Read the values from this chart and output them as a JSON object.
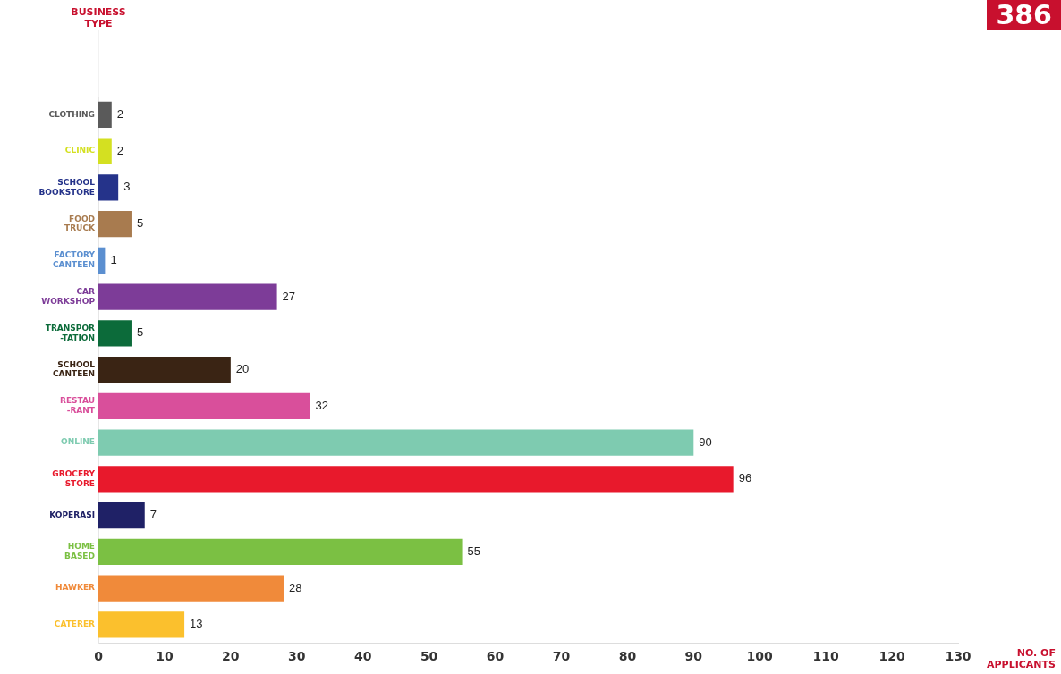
{
  "chart_data": {
    "type": "bar",
    "orientation": "horizontal",
    "xlabel": "NO. OF\nAPPLICANTS",
    "categories": [
      "CLOTHING",
      "CLINIC",
      "SCHOOL\nBOOKSTORE",
      "FOOD\nTRUCK",
      "FACTORY\nCANTEEN",
      "CAR\nWORKSHOP",
      "TRANSPOR\n-TATION",
      "SCHOOL\nCANTEEN",
      "RESTAU\n-RANT",
      "ONLINE",
      "GROCERY\nSTORE",
      "KOPERASI",
      "HOME\nBASED",
      "HAWKER",
      "CATERER"
    ],
    "values": [
      2,
      2,
      3,
      5,
      1,
      27,
      5,
      20,
      32,
      90,
      96,
      7,
      55,
      28,
      13
    ],
    "colors": [
      "#5a5a5a",
      "#d4e021",
      "#25338a",
      "#a87b4f",
      "#5b8fd0",
      "#7d3c98",
      "#0c6b3a",
      "#3a2414",
      "#d94f9b",
      "#7ecbb0",
      "#e8192c",
      "#1f2166",
      "#7bc043",
      "#f08a3a",
      "#fbc02d"
    ],
    "xlim": [
      0,
      130
    ],
    "xticks": [
      0,
      10,
      20,
      30,
      40,
      50,
      60,
      70,
      80,
      90,
      100,
      110,
      120,
      130
    ],
    "data_labels": true,
    "grid": false,
    "legend": false,
    "annotations": [
      "BUSINESS\nTYPE",
      "386"
    ]
  }
}
